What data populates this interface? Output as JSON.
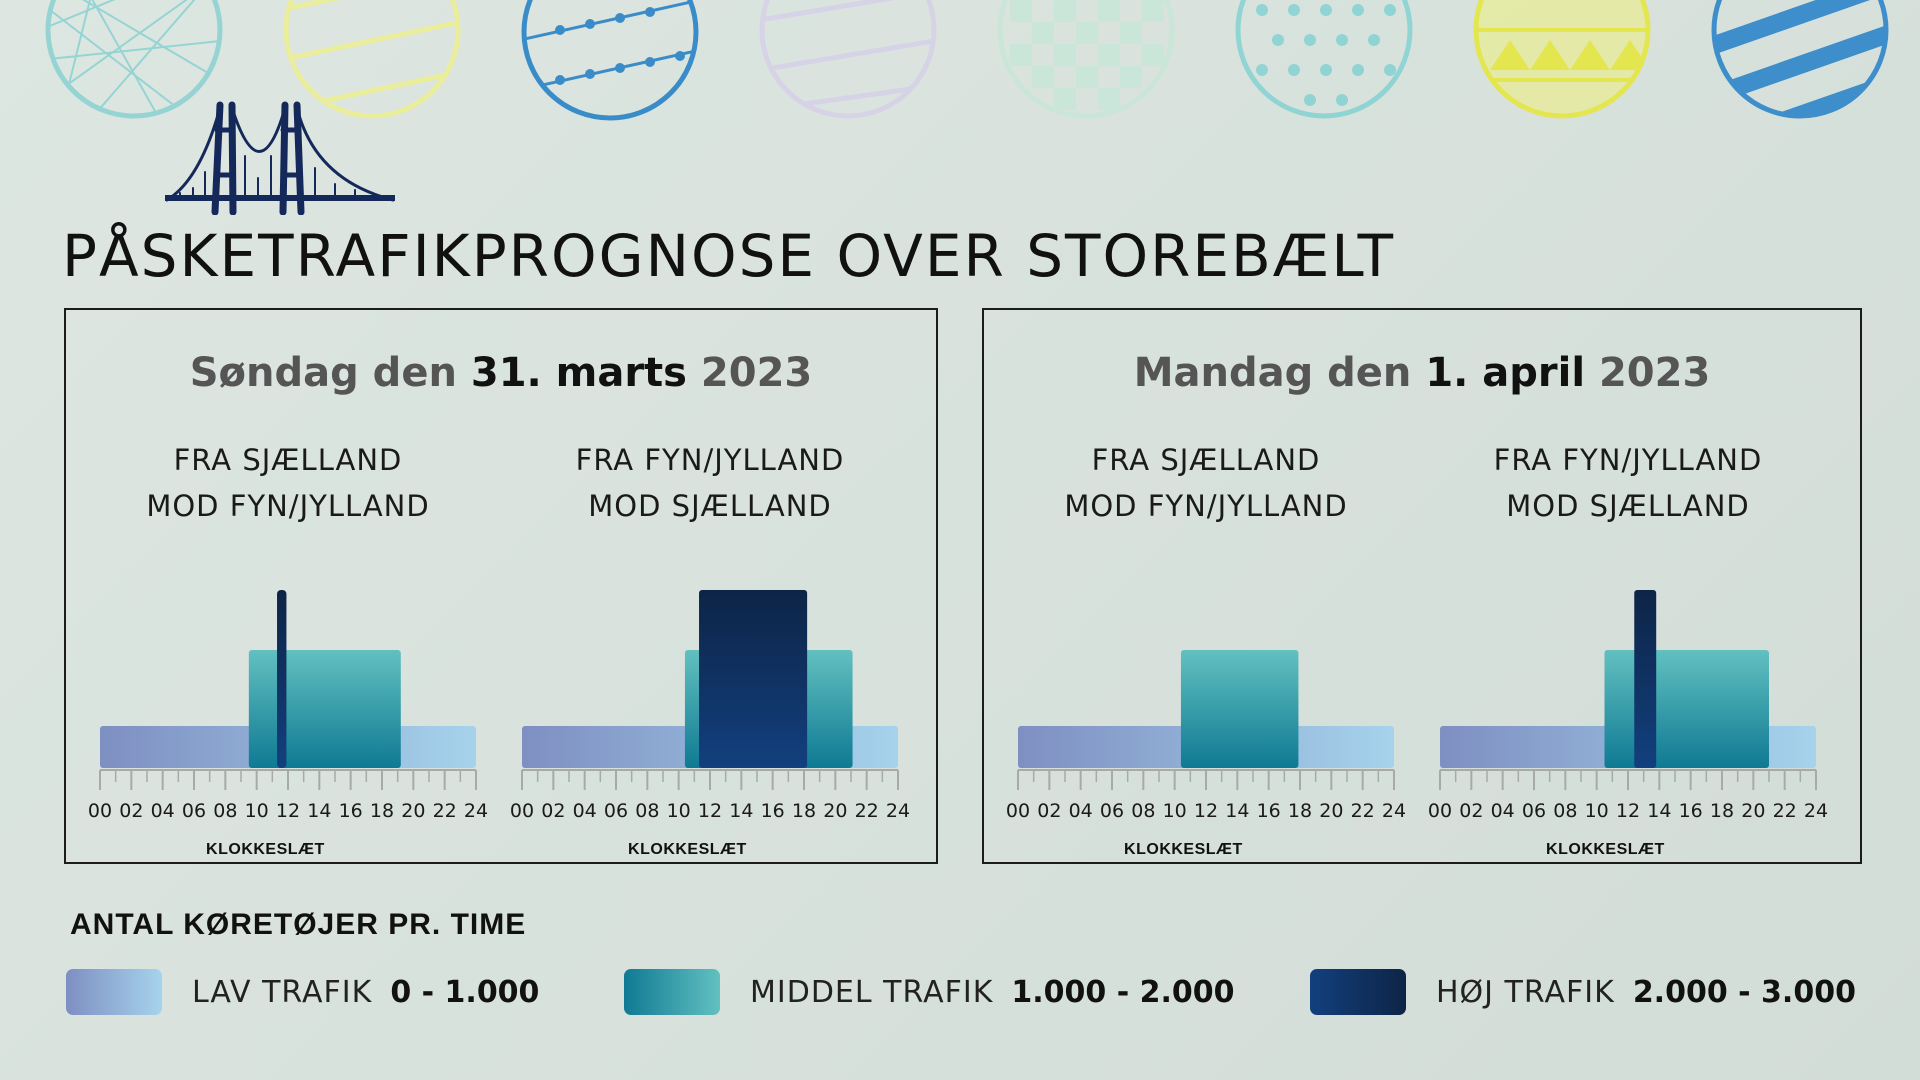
{
  "header": {
    "title": "PÅSKETRAFIKPROGNOSE OVER STOREBÆLT"
  },
  "days": [
    {
      "prefix": "Søndag den ",
      "date": "31. marts",
      "year": " 2023"
    },
    {
      "prefix": "Mandag den ",
      "date": "1. april",
      "year": " 2023"
    }
  ],
  "legend": {
    "title": "ANTAL KØRETØJER PR. TIME",
    "items": [
      {
        "label": "LAV TRAFIK",
        "range": "0 - 1.000"
      },
      {
        "label": "MIDDEL TRAFIK",
        "range": "1.000 - 2.000"
      },
      {
        "label": "HØJ TRAFIK",
        "range": "2.000 - 3.000"
      }
    ]
  },
  "colors": {
    "low": [
      "#7e8fc2",
      "#a6d3ec"
    ],
    "mid_top": "#62c0c0",
    "mid_bottom": "#0f7a94",
    "high_top": "#0d2446",
    "high_bottom": "#12407e",
    "axis": "#a7aaa9"
  },
  "chart_data": [
    {
      "type": "bar",
      "day": "Søndag den 31. marts 2023",
      "title": "FRA SJÆLLAND MOD FYN/JYLLAND",
      "title_lines": [
        "FRA SJÆLLAND",
        "MOD FYN/JYLLAND"
      ],
      "xlabel": "KLOKKESLÆT",
      "xlim": [
        0,
        24
      ],
      "ticks": [
        "00",
        "02",
        "04",
        "06",
        "08",
        "10",
        "12",
        "14",
        "16",
        "18",
        "20",
        "22",
        "24"
      ],
      "levels": [
        "LAV TRAFIK",
        "MIDDEL TRAFIK",
        "HØJ TRAFIK"
      ],
      "segments": [
        {
          "start": 0,
          "end": 24,
          "level": 1
        },
        {
          "start": 9.5,
          "end": 19.2,
          "level": 2
        },
        {
          "start": 11.3,
          "end": 11.9,
          "level": 3
        }
      ]
    },
    {
      "type": "bar",
      "day": "Søndag den 31. marts 2023",
      "title": "FRA FYN/JYLLAND MOD SJÆLLAND",
      "title_lines": [
        "FRA FYN/JYLLAND",
        "MOD SJÆLLAND"
      ],
      "xlabel": "KLOKKESLÆT",
      "xlim": [
        0,
        24
      ],
      "ticks": [
        "00",
        "02",
        "04",
        "06",
        "08",
        "10",
        "12",
        "14",
        "16",
        "18",
        "20",
        "22",
        "24"
      ],
      "levels": [
        "LAV TRAFIK",
        "MIDDEL TRAFIK",
        "HØJ TRAFIK"
      ],
      "segments": [
        {
          "start": 0,
          "end": 24,
          "level": 1
        },
        {
          "start": 10.4,
          "end": 21.1,
          "level": 2
        },
        {
          "start": 11.3,
          "end": 18.2,
          "level": 3
        }
      ]
    },
    {
      "type": "bar",
      "day": "Mandag den 1. april 2023",
      "title": "FRA SJÆLLAND MOD FYN/JYLLAND",
      "title_lines": [
        "FRA SJÆLLAND",
        "MOD FYN/JYLLAND"
      ],
      "xlabel": "KLOKKESLÆT",
      "xlim": [
        0,
        24
      ],
      "ticks": [
        "00",
        "02",
        "04",
        "06",
        "08",
        "10",
        "12",
        "14",
        "16",
        "18",
        "20",
        "22",
        "24"
      ],
      "levels": [
        "LAV TRAFIK",
        "MIDDEL TRAFIK",
        "HØJ TRAFIK"
      ],
      "segments": [
        {
          "start": 0,
          "end": 24,
          "level": 1
        },
        {
          "start": 10.4,
          "end": 17.9,
          "level": 2
        }
      ]
    },
    {
      "type": "bar",
      "day": "Mandag den 1. april 2023",
      "title": "FRA FYN/JYLLAND MOD SJÆLLAND",
      "title_lines": [
        "FRA FYN/JYLLAND",
        "MOD SJÆLLAND"
      ],
      "xlabel": "KLOKKESLÆT",
      "xlim": [
        0,
        24
      ],
      "ticks": [
        "00",
        "02",
        "04",
        "06",
        "08",
        "10",
        "12",
        "14",
        "16",
        "18",
        "20",
        "22",
        "24"
      ],
      "levels": [
        "LAV TRAFIK",
        "MIDDEL TRAFIK",
        "HØJ TRAFIK"
      ],
      "segments": [
        {
          "start": 0,
          "end": 24,
          "level": 1
        },
        {
          "start": 10.5,
          "end": 21.0,
          "level": 2
        },
        {
          "start": 12.4,
          "end": 13.8,
          "level": 3
        }
      ]
    }
  ]
}
